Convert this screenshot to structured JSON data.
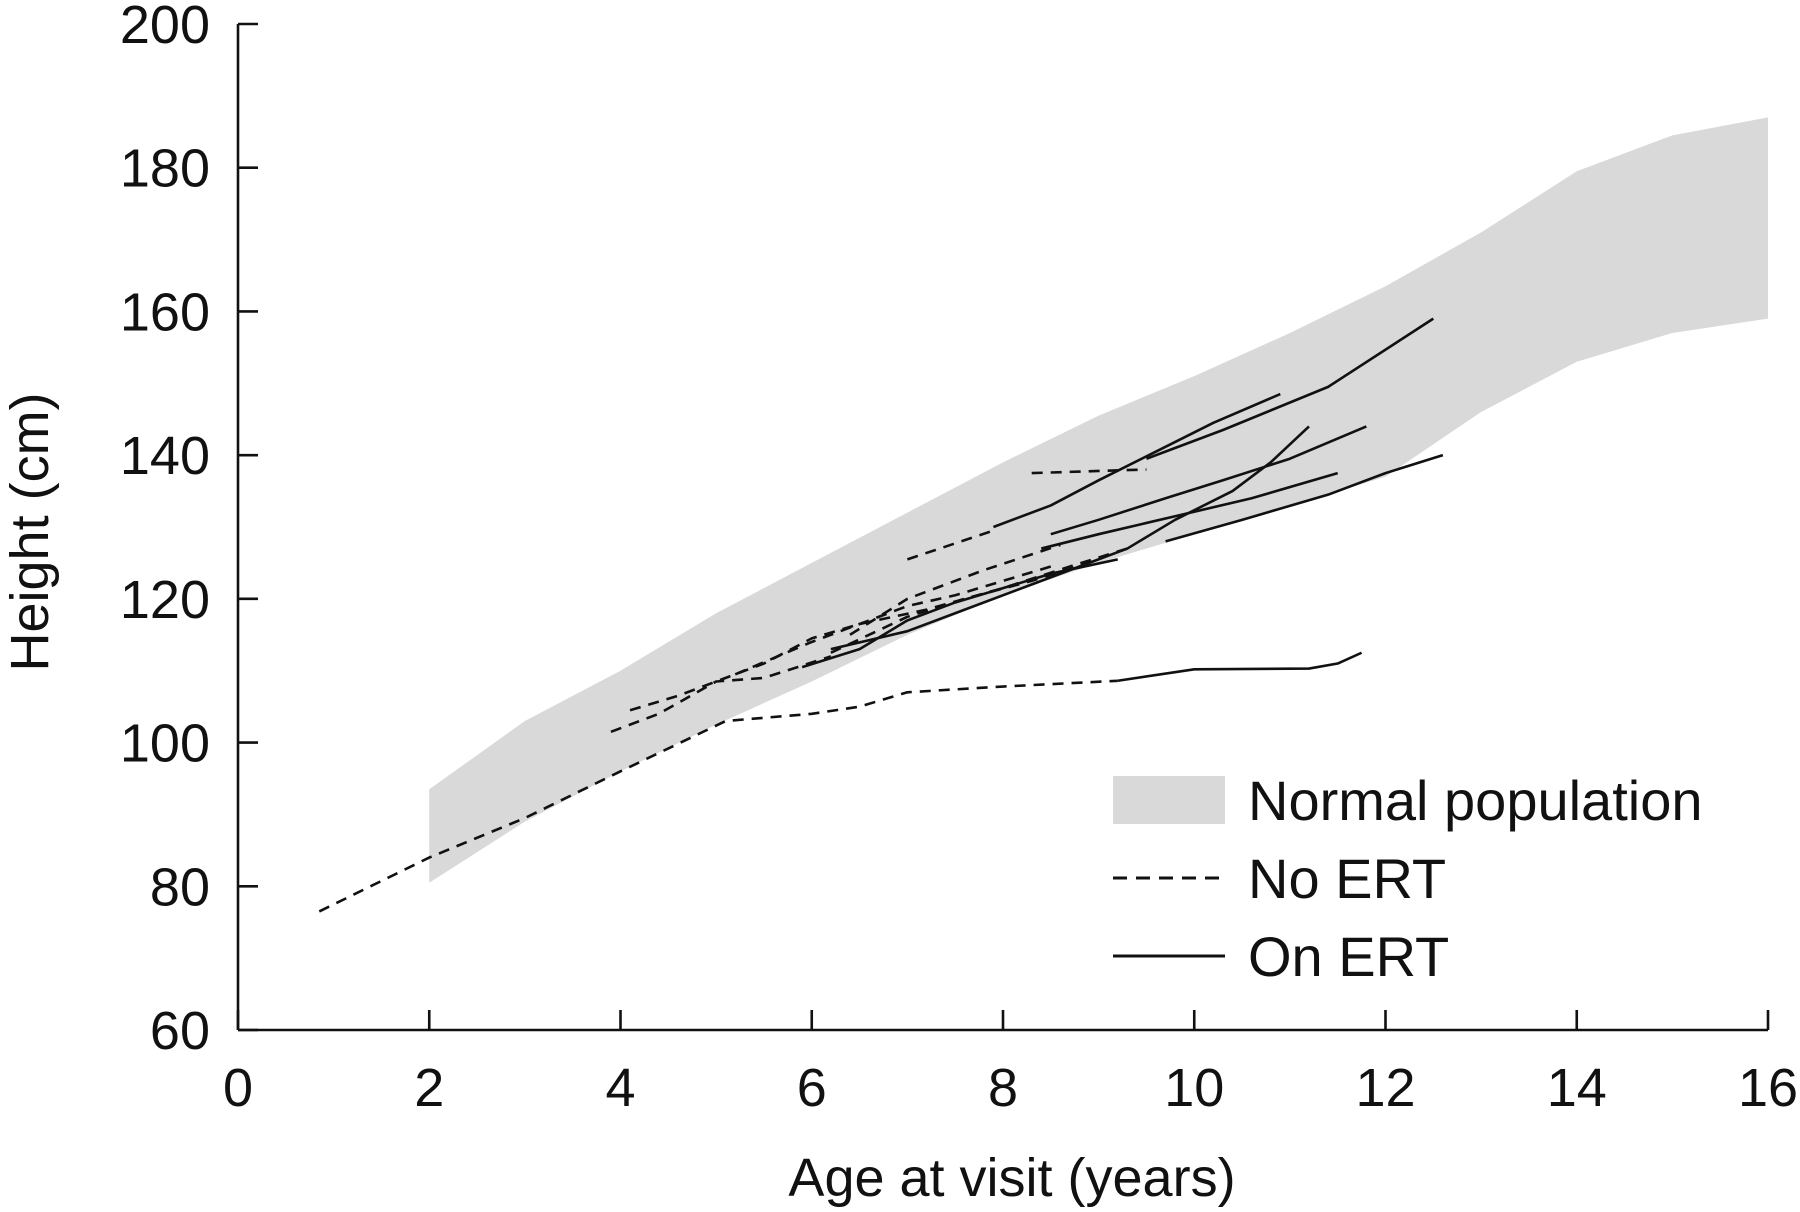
{
  "chart_data": {
    "type": "line",
    "xlabel": "Age at visit (years)",
    "ylabel": "Height (cm)",
    "xlim": [
      0,
      16
    ],
    "ylim": [
      60,
      200
    ],
    "xticks": [
      0,
      2,
      4,
      6,
      8,
      10,
      12,
      14,
      16
    ],
    "yticks": [
      60,
      80,
      100,
      120,
      140,
      160,
      180,
      200
    ],
    "grid": false,
    "legend_position": "bottom-right",
    "legend": [
      {
        "label": "Normal population",
        "kind": "band"
      },
      {
        "label": "No ERT",
        "kind": "dashed"
      },
      {
        "label": "On ERT",
        "kind": "solid"
      }
    ],
    "colors": {
      "band": "#d9d9d9",
      "line": "#111111"
    },
    "normal_band": {
      "x": [
        2,
        3,
        4,
        5,
        6,
        7,
        8,
        9,
        10,
        11,
        12,
        13,
        14,
        15,
        16
      ],
      "upper": [
        93.5,
        103,
        110,
        118,
        125,
        132,
        139,
        145.5,
        151,
        157,
        163.5,
        171,
        179.5,
        184.5,
        187
      ],
      "lower": [
        80.5,
        89,
        96,
        102.5,
        108.5,
        115,
        120.5,
        125,
        129,
        133,
        137,
        146,
        153,
        157,
        159
      ]
    },
    "series": [
      {
        "group": "No ERT",
        "style": "dashed",
        "points": [
          [
            0.85,
            76.5
          ],
          [
            2,
            84
          ],
          [
            3,
            89.5
          ],
          [
            4,
            96
          ],
          [
            5.1,
            103
          ],
          [
            6,
            104
          ],
          [
            6.5,
            105
          ],
          [
            7,
            107
          ],
          [
            8,
            107.8
          ],
          [
            9.2,
            108.6
          ]
        ]
      },
      {
        "group": "On ERT",
        "style": "solid",
        "points": [
          [
            9.2,
            108.6
          ],
          [
            10,
            110.2
          ],
          [
            11.2,
            110.3
          ],
          [
            11.5,
            111
          ],
          [
            11.75,
            112.5
          ]
        ]
      },
      {
        "group": "No ERT",
        "style": "dashed",
        "points": [
          [
            3.9,
            101.5
          ],
          [
            4.4,
            104
          ],
          [
            5,
            108.5
          ],
          [
            5.5,
            109
          ],
          [
            6.2,
            112
          ]
        ]
      },
      {
        "group": "No ERT",
        "style": "dashed",
        "points": [
          [
            4.1,
            104.5
          ],
          [
            4.6,
            106.5
          ],
          [
            5,
            108.5
          ],
          [
            5.5,
            111
          ],
          [
            6,
            114.5
          ],
          [
            6.5,
            116.5
          ],
          [
            7.2,
            118.5
          ],
          [
            8,
            121.5
          ],
          [
            8.7,
            124.5
          ],
          [
            9.3,
            127
          ]
        ]
      },
      {
        "group": "No ERT",
        "style": "dashed",
        "points": [
          [
            5.2,
            109.5
          ],
          [
            6,
            114
          ],
          [
            6.5,
            116.5
          ],
          [
            7,
            119
          ],
          [
            7.5,
            120.5
          ],
          [
            8,
            122.5
          ],
          [
            8.5,
            124.5
          ]
        ]
      },
      {
        "group": "No ERT",
        "style": "dashed",
        "points": [
          [
            6.2,
            112.5
          ],
          [
            7,
            117.5
          ],
          [
            7.6,
            120
          ],
          [
            8.3,
            122.5
          ],
          [
            9,
            125.5
          ]
        ]
      },
      {
        "group": "No ERT",
        "style": "dashed",
        "points": [
          [
            6.4,
            115
          ],
          [
            7,
            120
          ],
          [
            7.8,
            124
          ],
          [
            8.6,
            127.5
          ]
        ]
      },
      {
        "group": "No ERT",
        "style": "dashed",
        "points": [
          [
            7,
            125.5
          ],
          [
            7.9,
            129.5
          ]
        ]
      },
      {
        "group": "No ERT",
        "style": "dashed",
        "points": [
          [
            8.3,
            137.5
          ],
          [
            9,
            137.8
          ],
          [
            9.5,
            138
          ]
        ]
      },
      {
        "group": "On ERT",
        "style": "solid",
        "points": [
          [
            5.9,
            110.5
          ],
          [
            6.5,
            113
          ],
          [
            7,
            117
          ],
          [
            7.5,
            119.5
          ],
          [
            8,
            121.5
          ],
          [
            8.5,
            123.5
          ],
          [
            9.2,
            125.5
          ]
        ]
      },
      {
        "group": "On ERT",
        "style": "solid",
        "points": [
          [
            6.2,
            113
          ],
          [
            7,
            115.5
          ],
          [
            7.6,
            118.5
          ],
          [
            8.3,
            122
          ],
          [
            8.8,
            124.5
          ],
          [
            9.3,
            127
          ],
          [
            9.8,
            131
          ],
          [
            10.4,
            135
          ],
          [
            10.8,
            139
          ],
          [
            11.2,
            144
          ]
        ]
      },
      {
        "group": "On ERT",
        "style": "solid",
        "points": [
          [
            7.9,
            130
          ],
          [
            8.5,
            133
          ],
          [
            9,
            136.5
          ],
          [
            9.6,
            140.5
          ],
          [
            10.2,
            144.5
          ],
          [
            10.9,
            148.5
          ]
        ]
      },
      {
        "group": "On ERT",
        "style": "solid",
        "points": [
          [
            8.5,
            129
          ],
          [
            9,
            131
          ],
          [
            9.7,
            134
          ],
          [
            10.3,
            136.5
          ],
          [
            11,
            139.5
          ],
          [
            11.8,
            144
          ]
        ]
      },
      {
        "group": "On ERT",
        "style": "solid",
        "points": [
          [
            8.4,
            127
          ],
          [
            9,
            129
          ],
          [
            9.8,
            131.5
          ],
          [
            10.6,
            134
          ],
          [
            11.5,
            137.5
          ]
        ]
      },
      {
        "group": "On ERT",
        "style": "solid",
        "points": [
          [
            9.5,
            139.5
          ],
          [
            10.3,
            143.5
          ],
          [
            11.4,
            149.5
          ],
          [
            12.5,
            159
          ]
        ]
      },
      {
        "group": "On ERT",
        "style": "solid",
        "points": [
          [
            9.7,
            128
          ],
          [
            10.5,
            131
          ],
          [
            11.4,
            134.5
          ],
          [
            12,
            137.5
          ],
          [
            12.6,
            140
          ]
        ]
      }
    ]
  }
}
